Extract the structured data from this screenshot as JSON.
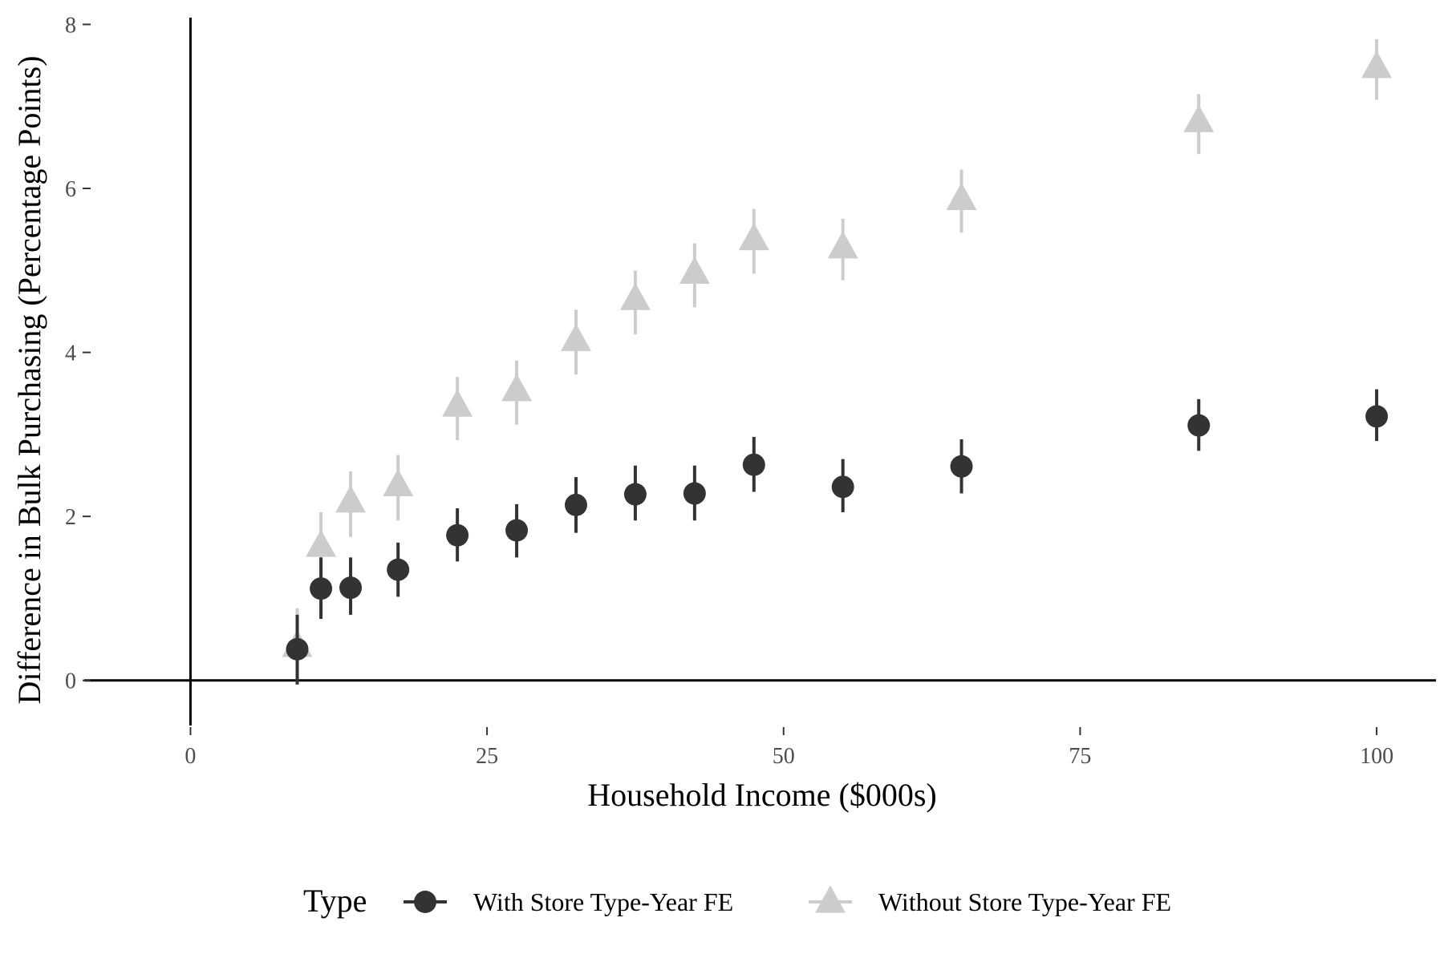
{
  "chart_data": {
    "type": "scatter",
    "xlabel": "Household Income ($000s)",
    "ylabel": "Difference in Bulk Purchasing (Percentage Points)",
    "xlim": [
      -12,
      105
    ],
    "ylim": [
      -0.55,
      8.2
    ],
    "xticks": [
      0,
      25,
      50,
      75,
      100
    ],
    "yticks": [
      0,
      2,
      4,
      6,
      8
    ],
    "grid": false,
    "legend": {
      "title": "Type",
      "position": "bottom"
    },
    "series": [
      {
        "name": "With Store Type-Year FE",
        "marker": "circle",
        "color": "#333333",
        "points": [
          {
            "x": 9.0,
            "y": 0.38,
            "lo": -0.05,
            "hi": 0.8
          },
          {
            "x": 11.0,
            "y": 1.12,
            "lo": 0.75,
            "hi": 1.5
          },
          {
            "x": 13.5,
            "y": 1.13,
            "lo": 0.8,
            "hi": 1.5
          },
          {
            "x": 17.5,
            "y": 1.35,
            "lo": 1.02,
            "hi": 1.68
          },
          {
            "x": 22.5,
            "y": 1.77,
            "lo": 1.45,
            "hi": 2.1
          },
          {
            "x": 27.5,
            "y": 1.83,
            "lo": 1.5,
            "hi": 2.15
          },
          {
            "x": 32.5,
            "y": 2.14,
            "lo": 1.8,
            "hi": 2.48
          },
          {
            "x": 37.5,
            "y": 2.27,
            "lo": 1.95,
            "hi": 2.62
          },
          {
            "x": 42.5,
            "y": 2.28,
            "lo": 1.95,
            "hi": 2.62
          },
          {
            "x": 47.5,
            "y": 2.63,
            "lo": 2.3,
            "hi": 2.97
          },
          {
            "x": 55.0,
            "y": 2.36,
            "lo": 2.05,
            "hi": 2.7
          },
          {
            "x": 65.0,
            "y": 2.61,
            "lo": 2.28,
            "hi": 2.94
          },
          {
            "x": 85.0,
            "y": 3.11,
            "lo": 2.8,
            "hi": 3.43
          },
          {
            "x": 100.0,
            "y": 3.22,
            "lo": 2.92,
            "hi": 3.55
          }
        ]
      },
      {
        "name": "Without Store Type-Year FE",
        "marker": "triangle",
        "color": "#cccccc",
        "points": [
          {
            "x": 9.0,
            "y": 0.4,
            "lo": -0.05,
            "hi": 0.88
          },
          {
            "x": 11.0,
            "y": 1.62,
            "lo": 1.2,
            "hi": 2.05
          },
          {
            "x": 13.5,
            "y": 2.16,
            "lo": 1.75,
            "hi": 2.55
          },
          {
            "x": 17.5,
            "y": 2.36,
            "lo": 1.95,
            "hi": 2.75
          },
          {
            "x": 22.5,
            "y": 3.33,
            "lo": 2.93,
            "hi": 3.7
          },
          {
            "x": 27.5,
            "y": 3.52,
            "lo": 3.12,
            "hi": 3.9
          },
          {
            "x": 32.5,
            "y": 4.13,
            "lo": 3.73,
            "hi": 4.52
          },
          {
            "x": 37.5,
            "y": 4.63,
            "lo": 4.22,
            "hi": 5.0
          },
          {
            "x": 42.5,
            "y": 4.95,
            "lo": 4.55,
            "hi": 5.33
          },
          {
            "x": 47.5,
            "y": 5.36,
            "lo": 4.96,
            "hi": 5.75
          },
          {
            "x": 55.0,
            "y": 5.26,
            "lo": 4.88,
            "hi": 5.63
          },
          {
            "x": 65.0,
            "y": 5.85,
            "lo": 5.46,
            "hi": 6.23
          },
          {
            "x": 85.0,
            "y": 6.8,
            "lo": 6.42,
            "hi": 7.15
          },
          {
            "x": 100.0,
            "y": 7.46,
            "lo": 7.08,
            "hi": 7.82
          }
        ]
      }
    ]
  }
}
